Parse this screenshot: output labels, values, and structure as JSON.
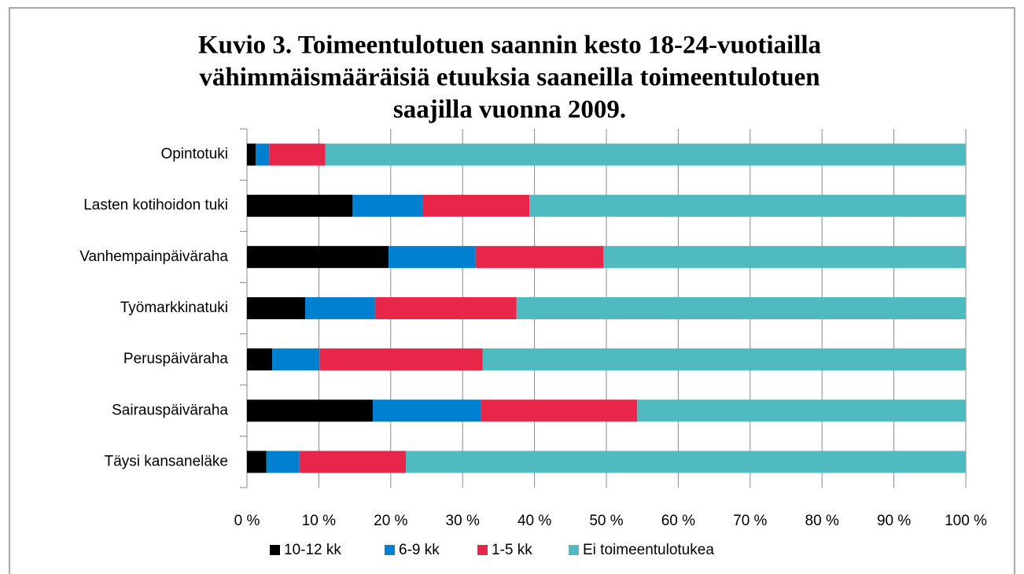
{
  "chart_data": {
    "type": "stacked_barh",
    "title_lines": [
      "Kuvio 3. Toimeentulotuen saannin kesto 18-24-vuotiailla",
      "vähimmäismääräisiä etuuksia saaneilla toimeentulotuen",
      "saajilla vuonna 2009."
    ],
    "categories": [
      "Opintotuki",
      "Lasten kotihoidon tuki",
      "Vanhempainpäiväraha",
      "Työmarkkinatuki",
      "Peruspäiväraha",
      "Sairauspäiväraha",
      "Täysi kansaneläke"
    ],
    "series": [
      {
        "name": "10-12 kk",
        "color": "#000000",
        "values": [
          1.2,
          14.7,
          19.7,
          8.1,
          3.5,
          17.5,
          2.7
        ]
      },
      {
        "name": "6-9 kk",
        "color": "#0080d0",
        "values": [
          1.9,
          9.7,
          12.1,
          9.7,
          6.6,
          15.0,
          4.6
        ]
      },
      {
        "name": "1-5 kk",
        "color": "#e8264a",
        "values": [
          7.8,
          14.9,
          17.8,
          19.7,
          22.7,
          21.8,
          14.8
        ]
      },
      {
        "name": "Ei toimeentulotukea",
        "color": "#4fbac0",
        "values": [
          89.1,
          60.7,
          50.4,
          62.5,
          67.2,
          45.7,
          77.9
        ]
      }
    ],
    "xlim": [
      0,
      100
    ],
    "xticks": [
      {
        "value": 0,
        "label": "0 %"
      },
      {
        "value": 10,
        "label": "10 %"
      },
      {
        "value": 20,
        "label": "20 %"
      },
      {
        "value": 30,
        "label": "30 %"
      },
      {
        "value": 40,
        "label": "40 %"
      },
      {
        "value": 50,
        "label": "50 %"
      },
      {
        "value": 60,
        "label": "60 %"
      },
      {
        "value": 70,
        "label": "70 %"
      },
      {
        "value": 80,
        "label": "80 %"
      },
      {
        "value": 90,
        "label": "90 %"
      },
      {
        "value": 100,
        "label": "100 %"
      }
    ],
    "grid": true,
    "legend": "bottom"
  }
}
